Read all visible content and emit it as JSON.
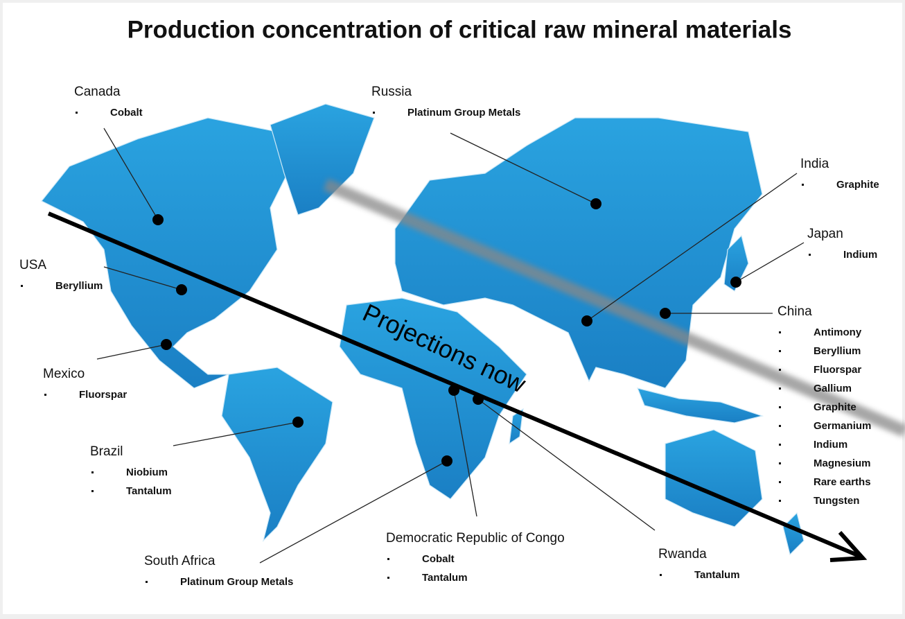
{
  "title": "Production concentration of critical raw mineral materials",
  "annotation": "Projections now",
  "countries": [
    {
      "name": "Canada",
      "minerals": [
        "Cobalt"
      ]
    },
    {
      "name": "Russia",
      "minerals": [
        "Platinum Group Metals"
      ]
    },
    {
      "name": "India",
      "minerals": [
        "Graphite"
      ]
    },
    {
      "name": "Japan",
      "minerals": [
        "Indium"
      ]
    },
    {
      "name": "USA",
      "minerals": [
        "Beryllium"
      ]
    },
    {
      "name": "China",
      "minerals": [
        "Antimony",
        "Beryllium",
        "Fluorspar",
        "Gallium",
        "Graphite",
        "Germanium",
        "Indium",
        "Magnesium",
        "Rare earths",
        "Tungsten"
      ]
    },
    {
      "name": "Mexico",
      "minerals": [
        "Fluorspar"
      ]
    },
    {
      "name": "Brazil",
      "minerals": [
        "Niobium",
        "Tantalum"
      ]
    },
    {
      "name": "South Africa",
      "minerals": [
        "Platinum Group Metals"
      ]
    },
    {
      "name": "Democratic Republic of Congo",
      "minerals": [
        "Cobalt",
        "Tantalum"
      ]
    },
    {
      "name": "Rwanda",
      "minerals": [
        "Tantalum"
      ]
    }
  ]
}
